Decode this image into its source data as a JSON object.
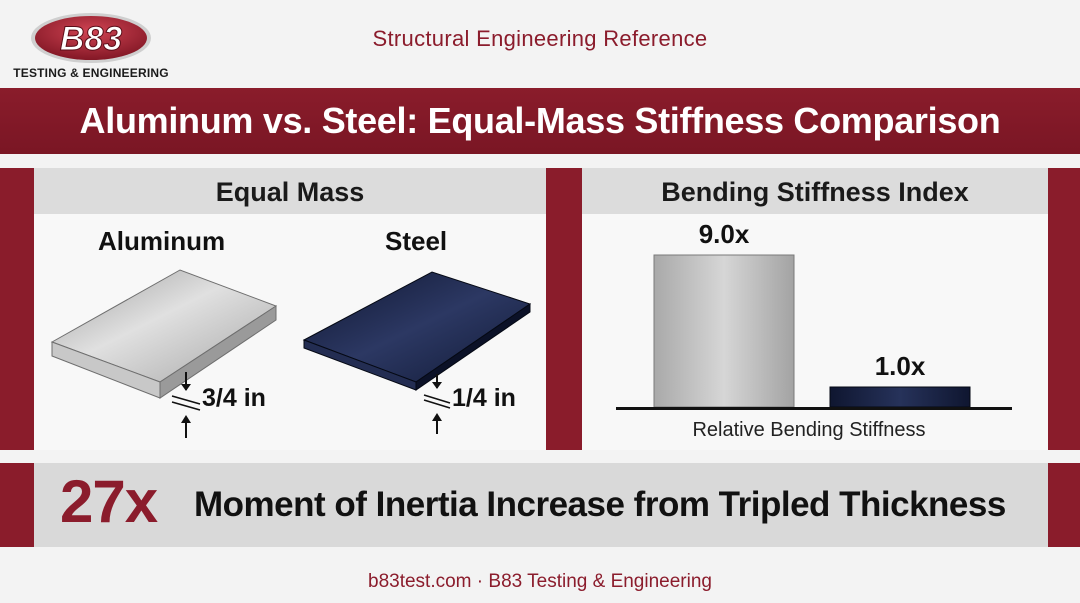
{
  "header": {
    "logo_text": "B83",
    "logo_subtitle": "TESTING & ENGINEERING",
    "title": "Structural Engineering Reference"
  },
  "main_title": "Aluminum vs. Steel: Equal-Mass Stiffness Comparison",
  "left_panel": {
    "heading": "Equal Mass",
    "aluminum": {
      "label": "Aluminum",
      "thickness": "3/4 in",
      "color": "#bdbdbd"
    },
    "steel": {
      "label": "Steel",
      "thickness": "1/4 in",
      "color": "#1b2440"
    }
  },
  "right_panel": {
    "heading": "Bending Stiffness Index",
    "bars": [
      {
        "name": "Aluminum",
        "value": 9.0,
        "label": "9.0x",
        "color": "#bdbdbd"
      },
      {
        "name": "Steel",
        "value": 1.0,
        "label": "1.0x",
        "color": "#1b2440"
      }
    ],
    "axis_caption": "Relative Bending Stiffness"
  },
  "banner": {
    "big_number": "27x",
    "text": "Moment of Inertia Increase from Tripled Thickness"
  },
  "footer": "b83test.com · B83 Testing & Engineering",
  "colors": {
    "brand_red": "#8a1c2b",
    "panel_heading_bg": "#dcdcdc",
    "banner_bg": "#d9d9d9"
  }
}
